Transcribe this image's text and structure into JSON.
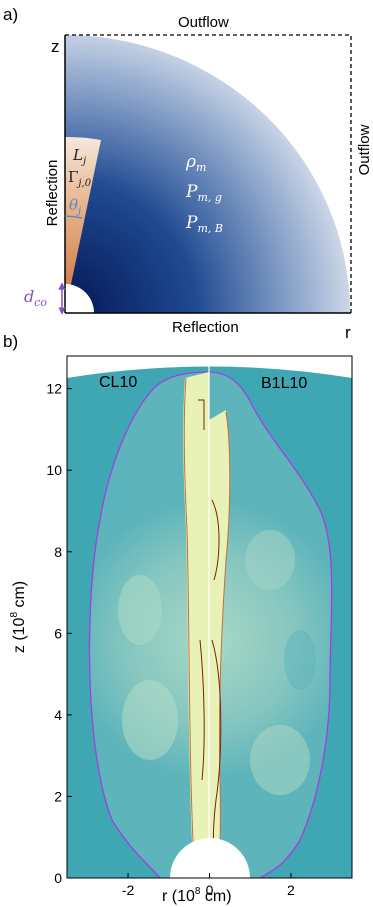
{
  "panel_a": {
    "label": "a)",
    "top_bc": "Outflow",
    "right_bc": "Outflow",
    "bottom_bc": "Reflection",
    "left_bc": "Reflection",
    "z_axis": "z",
    "r_axis": "r",
    "jet_params": {
      "luminosity": "L",
      "luminosity_sub": "j",
      "lorentz": "Γ",
      "lorentz_sub": "j,0",
      "angle": "θ",
      "angle_sub": "j"
    },
    "medium_params": [
      {
        "sym": "ρ",
        "sub": "m"
      },
      {
        "sym": "P",
        "sub": "m, g"
      },
      {
        "sym": "P",
        "sub": "m, B"
      }
    ],
    "core_label": {
      "sym": "d",
      "sub": "co"
    },
    "colors": {
      "jet": "#d9905a",
      "medium_dark": "#061a57",
      "medium_light": "#c5cfe0",
      "annotation": "#8a4fb8",
      "angle_arc": "#5f86c8"
    }
  },
  "panel_b": {
    "label": "b)",
    "left_model": "CL10",
    "right_model": "B1L10",
    "xlabel": "r (10",
    "xlabel_exp": "8",
    "xlabel_unit": " cm)",
    "ylabel": "z (10",
    "ylabel_exp": "8",
    "ylabel_unit": " cm)",
    "colors": {
      "background": "#3fa7b3",
      "cocoon": "#7cc2bf",
      "jet_core": "#e9f2b6",
      "outer_contour": "#a33ee0",
      "jet_contour_left": "#c2703a",
      "jet_contour_right": "#7a1f14"
    }
  },
  "chart_data": {
    "type": "heatmap",
    "xlim": [
      -3.5,
      3.5
    ],
    "ylim": [
      0,
      12.8
    ],
    "x_ticks": [
      -2,
      0,
      2
    ],
    "y_ticks": [
      0,
      2,
      4,
      6,
      8,
      10,
      12
    ],
    "x_tick_labels": [
      "-2",
      "0",
      "2"
    ],
    "y_tick_labels": [
      "0",
      "2",
      "4",
      "6",
      "8",
      "10",
      "12"
    ],
    "series": [
      {
        "name": "CL10",
        "side": "left"
      },
      {
        "name": "B1L10",
        "side": "right"
      }
    ]
  }
}
